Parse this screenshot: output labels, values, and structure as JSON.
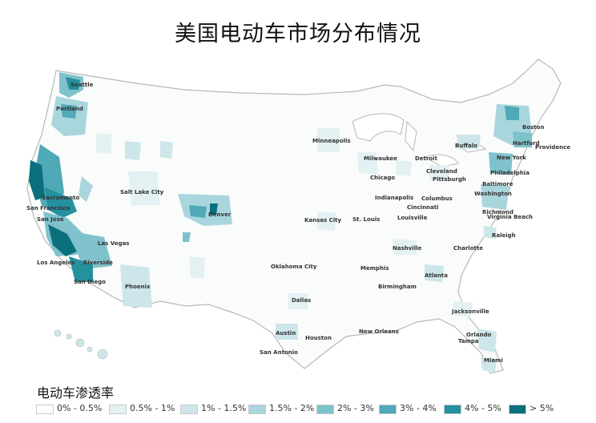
{
  "title": "美国电动车市场分布情况",
  "legend": {
    "title": "电动车渗透率",
    "items": [
      {
        "label": "0% - 0.5%",
        "color": "#ffffff"
      },
      {
        "label": "0.5% - 1%",
        "color": "#e3f1f3"
      },
      {
        "label": "1% - 1.5%",
        "color": "#cce6ea"
      },
      {
        "label": "1.5% - 2%",
        "color": "#a9d6dd"
      },
      {
        "label": "2% - 3%",
        "color": "#7fc2cc"
      },
      {
        "label": "3% - 4%",
        "color": "#4fa9b6"
      },
      {
        "label": "4% - 5%",
        "color": "#25909e"
      },
      {
        "label": "> 5%",
        "color": "#0b6f7e"
      }
    ]
  },
  "cities": [
    {
      "name": "Seattle"
    },
    {
      "name": "Portland"
    },
    {
      "name": "Sacramento"
    },
    {
      "name": "San Francisco"
    },
    {
      "name": "San Jose"
    },
    {
      "name": "Las Vegas"
    },
    {
      "name": "Los Angeles"
    },
    {
      "name": "Riverside"
    },
    {
      "name": "San Diego"
    },
    {
      "name": "Phoenix"
    },
    {
      "name": "Salt Lake City"
    },
    {
      "name": "Denver"
    },
    {
      "name": "Minneapolis"
    },
    {
      "name": "Kansas City"
    },
    {
      "name": "St. Louis"
    },
    {
      "name": "Oklahoma City"
    },
    {
      "name": "Dallas"
    },
    {
      "name": "Austin"
    },
    {
      "name": "Houston"
    },
    {
      "name": "San Antonio"
    },
    {
      "name": "Milwaukee"
    },
    {
      "name": "Chicago"
    },
    {
      "name": "Detroit"
    },
    {
      "name": "Cleveland"
    },
    {
      "name": "Pittsburgh"
    },
    {
      "name": "Indianapolis"
    },
    {
      "name": "Columbus"
    },
    {
      "name": "Cincinnati"
    },
    {
      "name": "Louisville"
    },
    {
      "name": "Nashville"
    },
    {
      "name": "Memphis"
    },
    {
      "name": "Birmingham"
    },
    {
      "name": "Atlanta"
    },
    {
      "name": "Charlotte"
    },
    {
      "name": "New Orleans"
    },
    {
      "name": "Jacksonville"
    },
    {
      "name": "Orlando"
    },
    {
      "name": "Tampa"
    },
    {
      "name": "Miami"
    },
    {
      "name": "Buffalo"
    },
    {
      "name": "Boston"
    },
    {
      "name": "Hartford"
    },
    {
      "name": "Providence"
    },
    {
      "name": "New York"
    },
    {
      "name": "Philadelphia"
    },
    {
      "name": "Baltimore"
    },
    {
      "name": "Washington"
    },
    {
      "name": "Richmond"
    },
    {
      "name": "Virginia Beach"
    },
    {
      "name": "Raleigh"
    }
  ]
}
